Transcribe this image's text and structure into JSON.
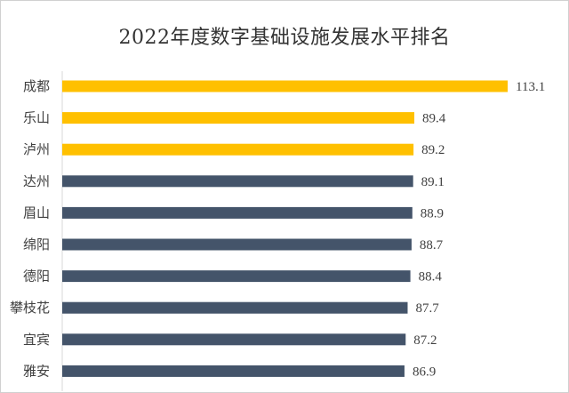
{
  "chart_data": {
    "type": "bar",
    "orientation": "horizontal",
    "title": "2022年度数字基础设施发展水平排名",
    "categories": [
      "成都",
      "乐山",
      "泸州",
      "达州",
      "眉山",
      "绵阳",
      "德阳",
      "攀枝花",
      "宜宾",
      "雅安"
    ],
    "values": [
      113.1,
      89.4,
      89.2,
      89.1,
      88.9,
      88.7,
      88.4,
      87.7,
      87.2,
      86.9
    ],
    "value_labels": [
      "113.1",
      "89.4",
      "89.2",
      "89.1",
      "88.9",
      "88.7",
      "88.4",
      "87.7",
      "87.2",
      "86.9"
    ],
    "bar_colors": [
      "#FFC000",
      "#FFC000",
      "#FFC000",
      "#44546A",
      "#44546A",
      "#44546A",
      "#44546A",
      "#44546A",
      "#44546A",
      "#44546A"
    ],
    "xlim": [
      0,
      113.1
    ],
    "grid": false,
    "legend": "none"
  }
}
